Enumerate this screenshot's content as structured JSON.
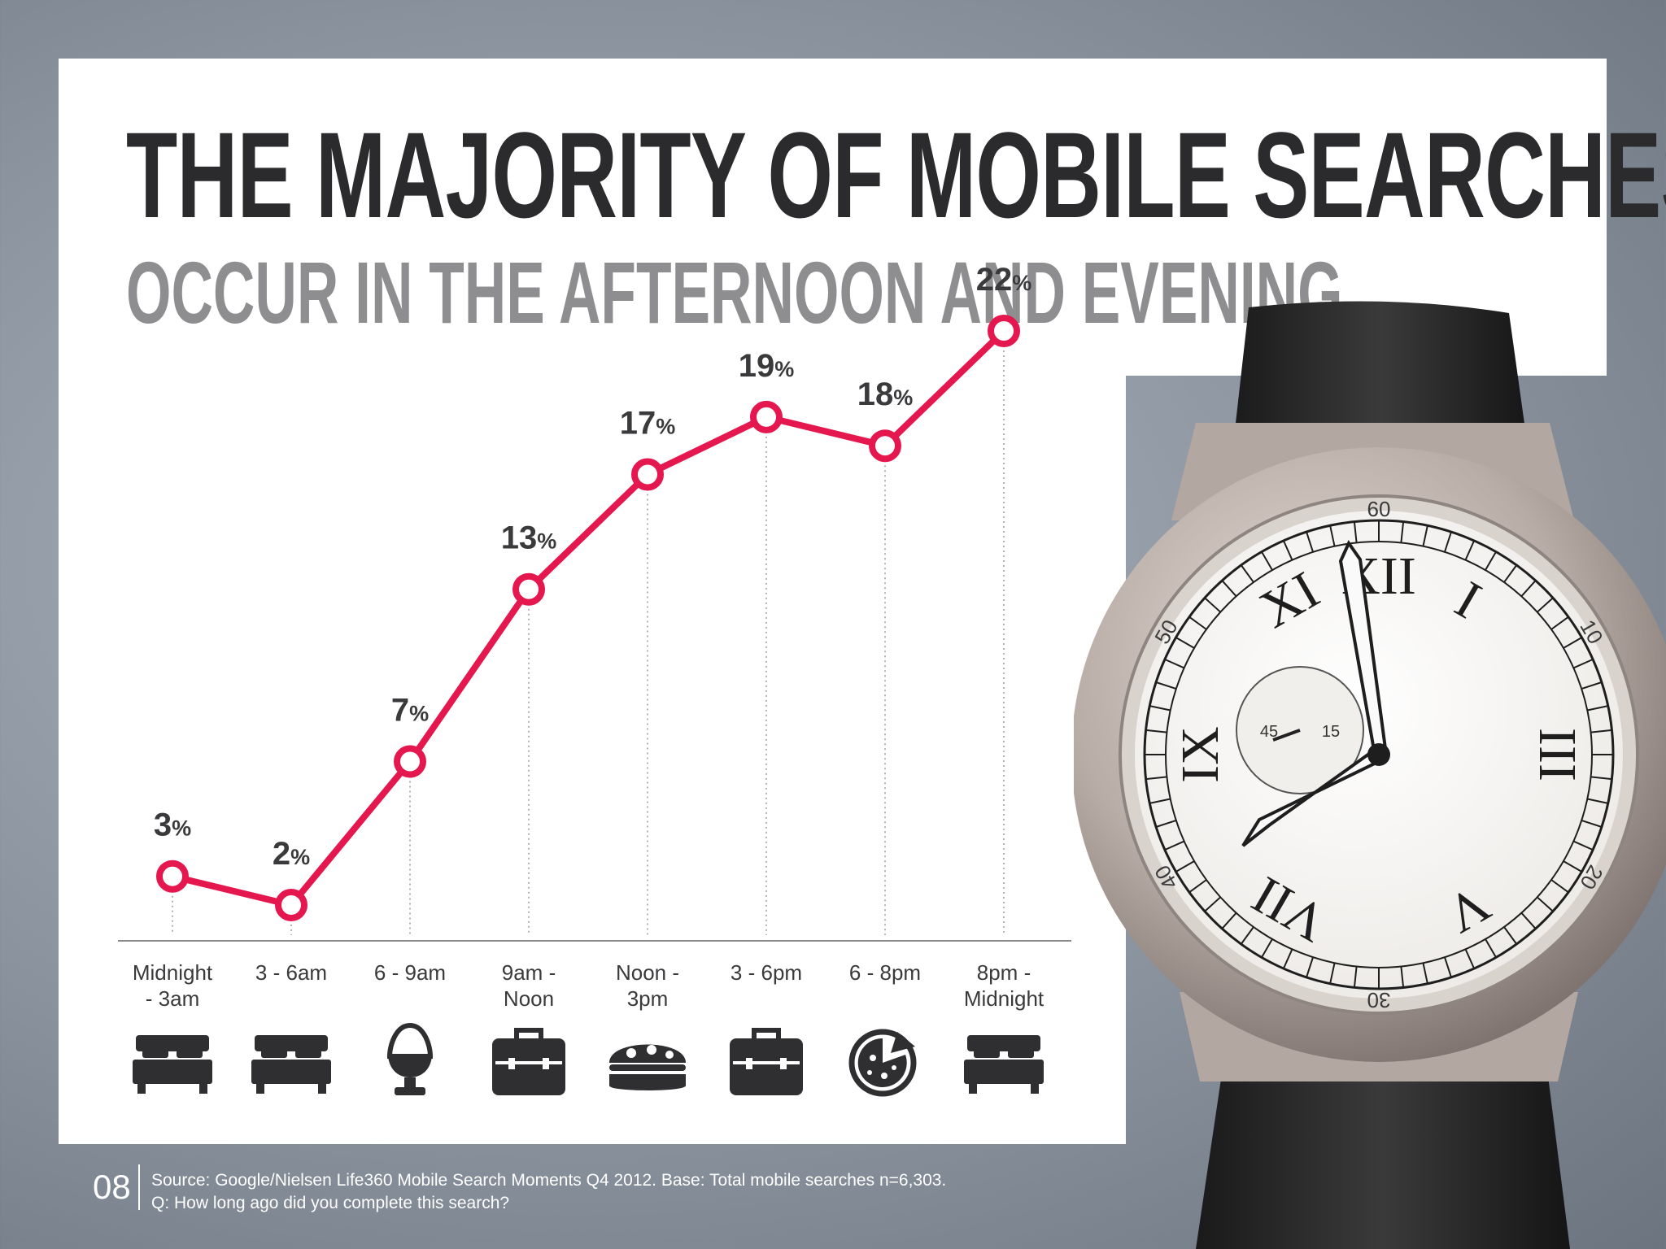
{
  "title": "THE MAJORITY OF MOBILE SEARCHES",
  "subtitle": "OCCUR IN THE AFTERNOON AND EVENING",
  "chart_data": {
    "type": "line",
    "categories": [
      [
        "Midnight",
        "- 3am"
      ],
      [
        "3 - 6am"
      ],
      [
        "6 - 9am"
      ],
      [
        "9am -",
        "Noon"
      ],
      [
        "Noon -",
        "3pm"
      ],
      [
        "3 - 6pm"
      ],
      [
        "6 - 8pm"
      ],
      [
        "8pm -",
        "Midnight"
      ]
    ],
    "values": [
      3,
      2,
      7,
      13,
      17,
      19,
      18,
      22
    ],
    "value_suffix": "%",
    "category_icons": [
      "bed-icon",
      "bed-icon",
      "egg-cup-icon",
      "briefcase-icon",
      "sandwich-icon",
      "briefcase-icon",
      "pizza-icon",
      "bed-icon"
    ],
    "ylim": [
      0,
      22
    ],
    "line_color": "#e5174f",
    "grid": false
  },
  "footer": {
    "page_number": "08",
    "source_line1": "Source: Google/Nielsen Life360 Mobile Search Moments Q4 2012. Base: Total mobile searches n=6,303.",
    "source_line2": "Q: How long ago did you complete this search?"
  },
  "watch": {
    "roman_numerals": [
      "XII",
      "I",
      "III",
      "V",
      "VII",
      "IX",
      "XI"
    ],
    "minute_labels": [
      "60",
      "10",
      "20",
      "30",
      "40",
      "50"
    ],
    "subdial_labels": [
      "45",
      "15"
    ]
  }
}
